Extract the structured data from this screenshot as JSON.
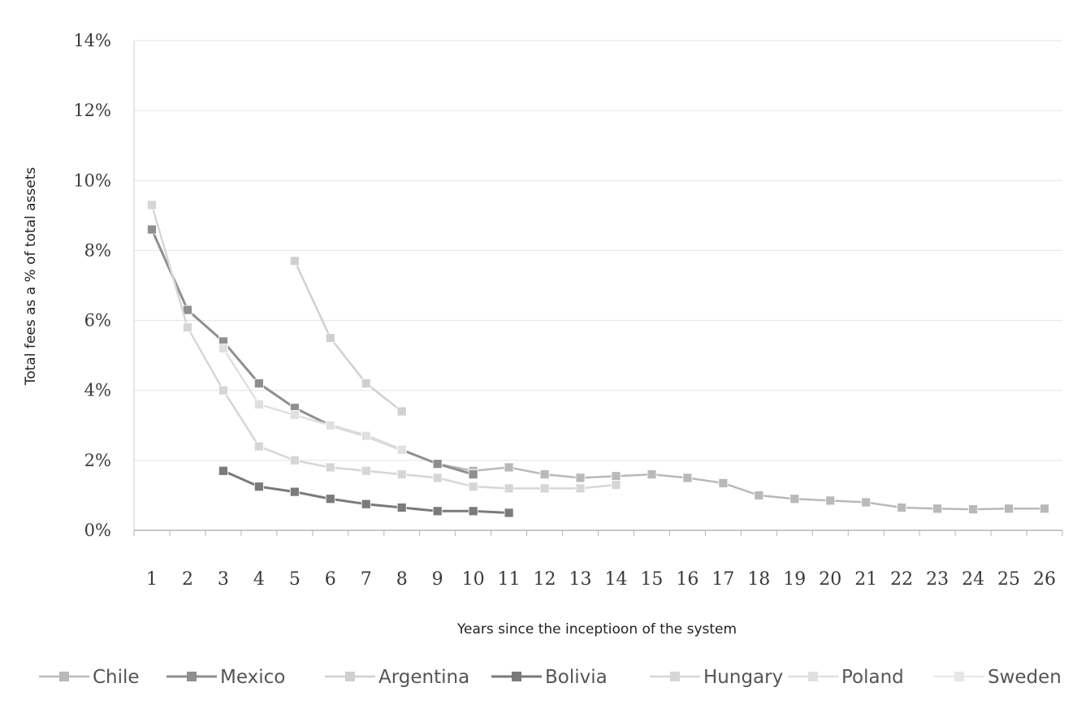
{
  "chart_data": {
    "type": "line",
    "title": "",
    "xlabel": "Years since the inceptioon of the system",
    "ylabel": "Total fees as a % of total assets",
    "categories": [
      "1",
      "2",
      "3",
      "4",
      "5",
      "6",
      "7",
      "8",
      "9",
      "10",
      "11",
      "12",
      "13",
      "14",
      "15",
      "16",
      "17",
      "18",
      "19",
      "20",
      "21",
      "22",
      "23",
      "24",
      "25",
      "26"
    ],
    "yticks": [
      "0%",
      "2%",
      "4%",
      "6%",
      "8%",
      "10%",
      "12%",
      "14%"
    ],
    "ylim": [
      0,
      14
    ],
    "grid": true,
    "legend_position": "bottom",
    "series": [
      {
        "name": "Chile",
        "color": "#b9b9b9",
        "width": 2.5,
        "values": [
          null,
          null,
          null,
          null,
          null,
          null,
          null,
          null,
          1.9,
          1.7,
          1.8,
          1.6,
          1.5,
          1.55,
          1.6,
          1.5,
          1.35,
          1.0,
          0.9,
          0.85,
          0.8,
          0.65,
          0.62,
          0.6,
          0.62,
          0.62
        ]
      },
      {
        "name": "Mexico",
        "color": "#8f8f8f",
        "width": 3,
        "values": [
          8.6,
          6.3,
          5.4,
          4.2,
          3.5,
          3.0,
          2.7,
          2.3,
          1.9,
          1.6,
          null,
          null,
          null,
          null,
          null,
          null,
          null,
          null,
          null,
          null,
          null,
          null,
          null,
          null,
          null,
          null
        ]
      },
      {
        "name": "Argentina",
        "color": "#d0d0d0",
        "width": 2.5,
        "values": [
          null,
          null,
          null,
          null,
          7.7,
          5.5,
          4.2,
          3.4,
          null,
          null,
          null,
          null,
          null,
          null,
          null,
          null,
          null,
          null,
          null,
          null,
          null,
          null,
          null,
          null,
          null,
          null
        ]
      },
      {
        "name": "Bolivia",
        "color": "#7a7a7a",
        "width": 3,
        "values": [
          null,
          null,
          1.7,
          1.25,
          1.1,
          0.9,
          0.75,
          0.65,
          0.55,
          0.55,
          0.5,
          null,
          null,
          null,
          null,
          null,
          null,
          null,
          null,
          null,
          null,
          null,
          null,
          null,
          null,
          null
        ]
      },
      {
        "name": "Hungary",
        "color": "#d6d6d6",
        "width": 2.5,
        "values": [
          9.3,
          5.8,
          4.0,
          2.4,
          2.0,
          1.8,
          1.7,
          1.6,
          1.5,
          1.25,
          1.2,
          1.2,
          1.2,
          1.3,
          null,
          null,
          null,
          null,
          null,
          null,
          null,
          null,
          null,
          null,
          null,
          null
        ]
      },
      {
        "name": "Poland",
        "color": "#e0e0e0",
        "width": 2.5,
        "values": [
          null,
          null,
          5.2,
          3.6,
          3.3,
          3.0,
          2.7,
          2.3,
          null,
          null,
          null,
          null,
          null,
          null,
          null,
          null,
          null,
          null,
          null,
          null,
          null,
          null,
          null,
          null,
          null,
          null
        ]
      },
      {
        "name": "Sweden",
        "color": "#e6e6e6",
        "width": 2,
        "values": [
          null,
          null,
          null,
          null,
          null,
          null,
          null,
          null,
          null,
          null,
          null,
          null,
          null,
          null,
          null,
          null,
          null,
          null,
          null,
          null,
          null,
          null,
          null,
          null,
          null,
          null
        ]
      }
    ]
  }
}
